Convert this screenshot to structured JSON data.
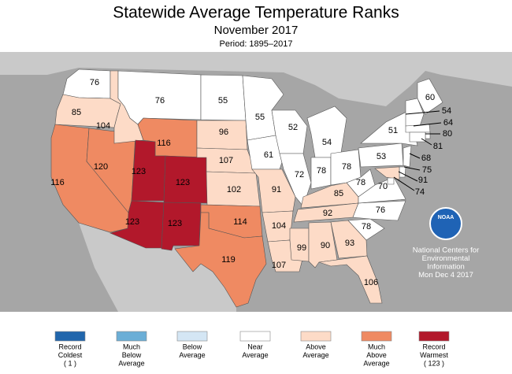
{
  "header": {
    "title": "Statewide Average Temperature Ranks",
    "subtitle": "November 2017",
    "period": "Period: 1895–2017"
  },
  "states": [
    {
      "rank": 76,
      "color": "#ffffff"
    },
    {
      "rank": 85,
      "color": "#fddbc7"
    },
    {
      "rank": 116,
      "color": "#ef8a62"
    },
    {
      "rank": 120,
      "color": "#ef8a62"
    },
    {
      "rank": 104,
      "color": "#fddbc7"
    },
    {
      "rank": 76,
      "color": "#ffffff"
    },
    {
      "rank": 116,
      "color": "#ef8a62"
    },
    {
      "rank": 123,
      "color": "#b2182b"
    },
    {
      "rank": 123,
      "color": "#b2182b"
    },
    {
      "rank": 123,
      "color": "#b2182b"
    },
    {
      "rank": 123,
      "color": "#b2182b"
    },
    {
      "rank": 55,
      "color": "#ffffff"
    },
    {
      "rank": 96,
      "color": "#fddbc7"
    },
    {
      "rank": 107,
      "color": "#fddbc7"
    },
    {
      "rank": 102,
      "color": "#fddbc7"
    },
    {
      "rank": 114,
      "color": "#ef8a62"
    },
    {
      "rank": 119,
      "color": "#ef8a62"
    },
    {
      "rank": 55,
      "color": "#ffffff"
    },
    {
      "rank": 61,
      "color": "#ffffff"
    },
    {
      "rank": 91,
      "color": "#fddbc7"
    },
    {
      "rank": 104,
      "color": "#fddbc7"
    },
    {
      "rank": 107,
      "color": "#fddbc7"
    },
    {
      "rank": 52,
      "color": "#ffffff"
    },
    {
      "rank": 72,
      "color": "#ffffff"
    },
    {
      "rank": 99,
      "color": "#fddbc7"
    },
    {
      "rank": 54,
      "color": "#ffffff"
    },
    {
      "rank": 78,
      "color": "#ffffff"
    },
    {
      "rank": 85,
      "color": "#fddbc7"
    },
    {
      "rank": 92,
      "color": "#fddbc7"
    },
    {
      "rank": 90,
      "color": "#fddbc7"
    },
    {
      "rank": 78,
      "color": "#ffffff"
    },
    {
      "rank": 78,
      "color": "#ffffff"
    },
    {
      "rank": 93,
      "color": "#fddbc7"
    },
    {
      "rank": 106,
      "color": "#fddbc7"
    },
    {
      "rank": 78,
      "color": "#ffffff"
    },
    {
      "rank": 76,
      "color": "#ffffff"
    },
    {
      "rank": 70,
      "color": "#ffffff"
    },
    {
      "rank": 53,
      "color": "#ffffff"
    },
    {
      "rank": 51,
      "color": "#ffffff"
    },
    {
      "rank": 60,
      "color": "#ffffff"
    },
    {
      "rank": 54,
      "color": "#ffffff"
    },
    {
      "rank": 64,
      "color": "#ffffff"
    },
    {
      "rank": 80,
      "color": "#ffffff"
    },
    {
      "rank": 81,
      "color": "#ffffff"
    },
    {
      "rank": 68,
      "color": "#ffffff"
    },
    {
      "rank": 75,
      "color": "#ffffff"
    },
    {
      "rank": 91,
      "color": "#fddbc7"
    },
    {
      "rank": 74,
      "color": "#ffffff"
    }
  ],
  "legend": [
    {
      "lines": [
        "Record",
        "Coldest",
        "( 1 )"
      ],
      "color": "#2166ac"
    },
    {
      "lines": [
        "Much",
        "Below",
        "Average"
      ],
      "color": "#6baed6"
    },
    {
      "lines": [
        "Below",
        "Average"
      ],
      "color": "#d4e6f4"
    },
    {
      "lines": [
        "Near",
        "Average"
      ],
      "color": "#ffffff"
    },
    {
      "lines": [
        "Above",
        "Average"
      ],
      "color": "#fddbc7"
    },
    {
      "lines": [
        "Much",
        "Above",
        "Average"
      ],
      "color": "#ef8a62"
    },
    {
      "lines": [
        "Record",
        "Warmest",
        "( 123 )"
      ],
      "color": "#b2182b"
    }
  ],
  "logo": "NOAA",
  "credit": {
    "lines": [
      "National Centers for",
      "Environmental",
      "Information"
    ],
    "date": "Mon Dec  4 2017"
  }
}
